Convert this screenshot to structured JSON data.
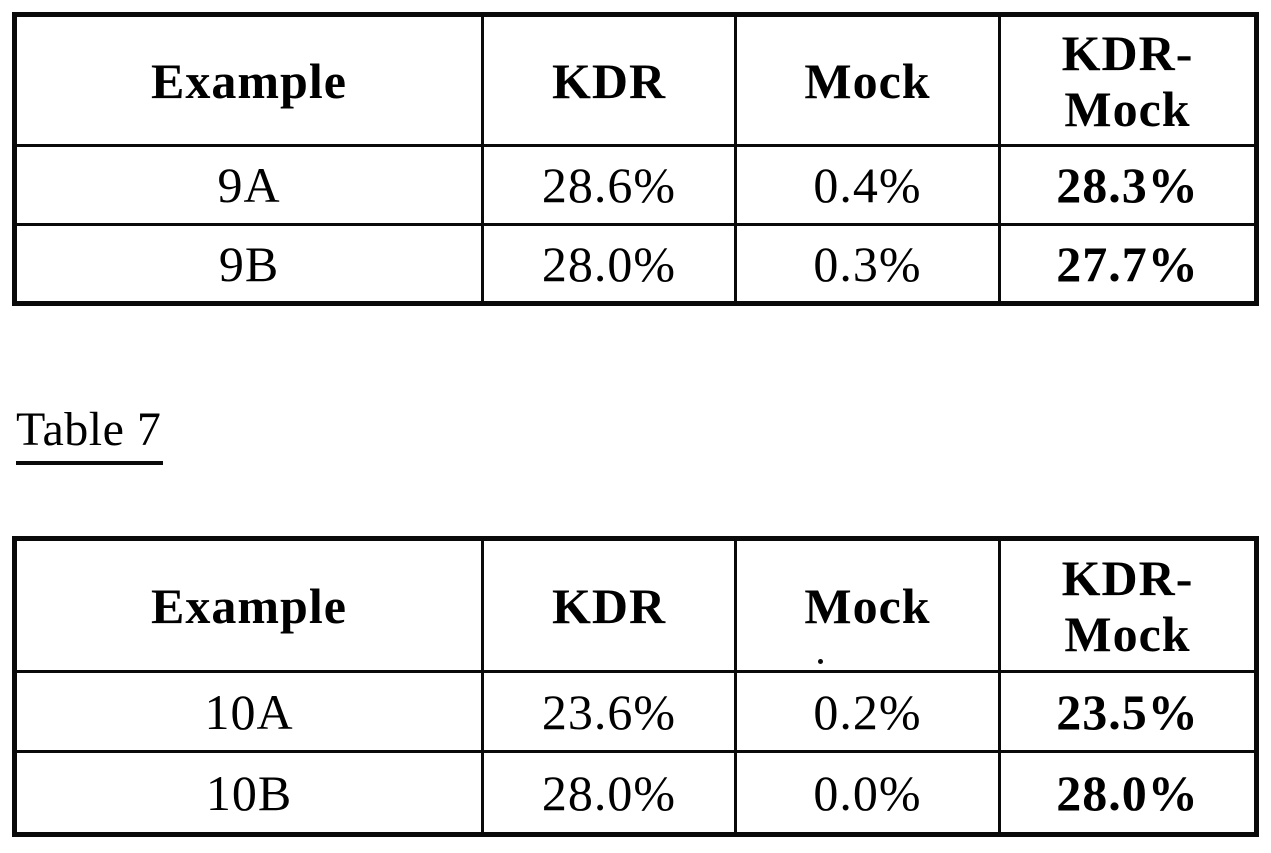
{
  "page": {
    "background": "#ffffff",
    "ink_color": "#0a0a0a"
  },
  "section_label": {
    "text": "Table 7"
  },
  "upper_table": {
    "headers": [
      "Example",
      "KDR",
      "Mock",
      "KDR-\nMock"
    ],
    "rows": [
      [
        "9A",
        "28.6%",
        "0.4%",
        "28.3%"
      ],
      [
        "9B",
        "28.0%",
        "0.3%",
        "27.7%"
      ]
    ]
  },
  "lower_table": {
    "headers": [
      "Example",
      "KDR",
      "Mock",
      "KDR-\nMock"
    ],
    "rows": [
      [
        "10A",
        "23.6%",
        "0.2%",
        "23.5%"
      ],
      [
        "10B",
        "28.0%",
        "0.0%",
        "28.0%"
      ]
    ]
  }
}
